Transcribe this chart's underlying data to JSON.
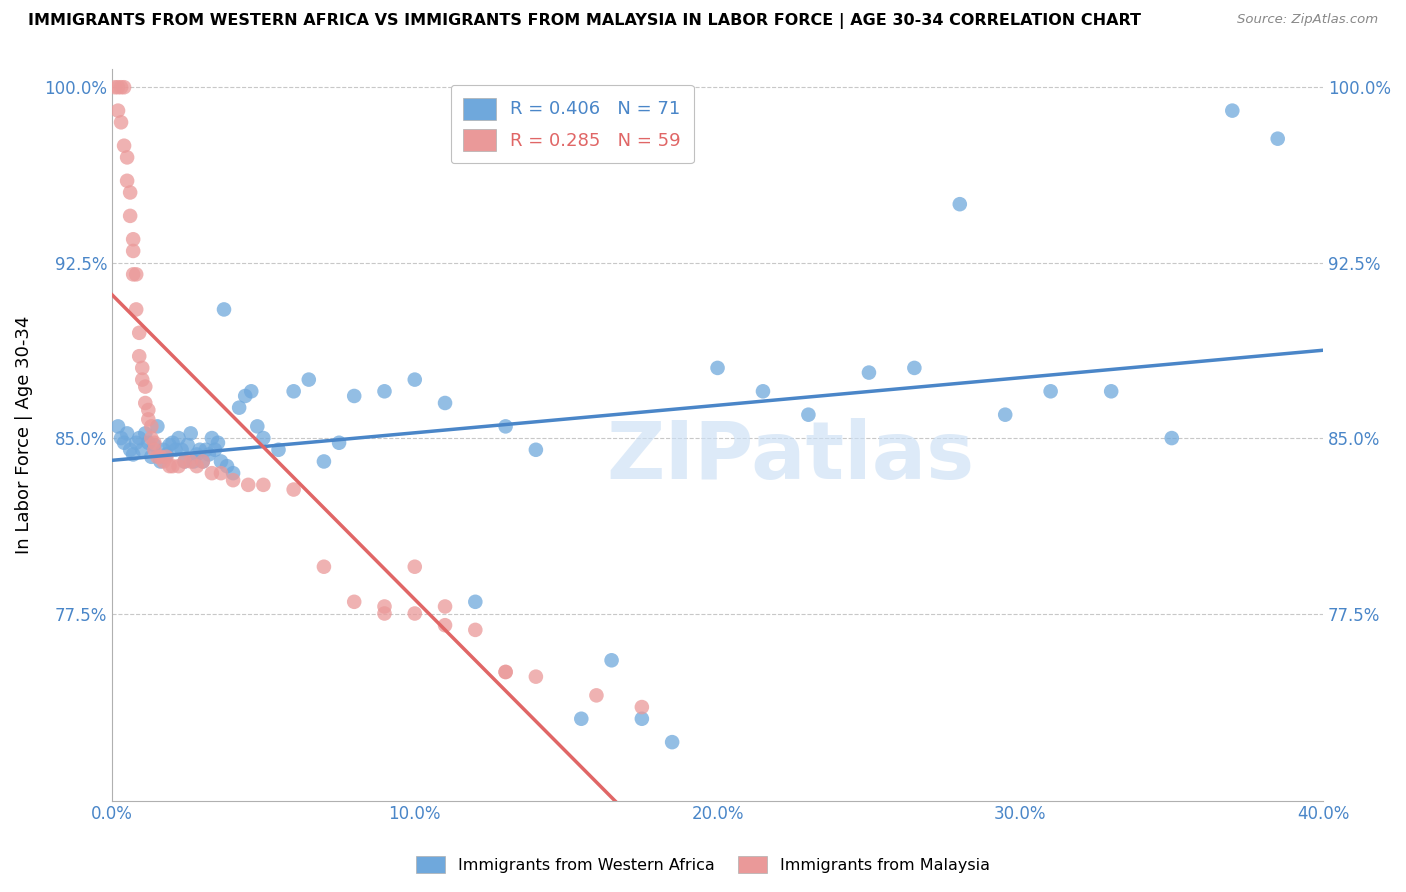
{
  "title": "IMMIGRANTS FROM WESTERN AFRICA VS IMMIGRANTS FROM MALAYSIA IN LABOR FORCE | AGE 30-34 CORRELATION CHART",
  "source": "Source: ZipAtlas.com",
  "ylabel": "In Labor Force | Age 30-34",
  "x_min": 0.0,
  "x_max": 0.4,
  "y_min": 0.695,
  "y_max": 1.008,
  "y_ticks": [
    0.775,
    0.85,
    0.925,
    1.0
  ],
  "y_tick_labels": [
    "77.5%",
    "85.0%",
    "92.5%",
    "100.0%"
  ],
  "x_ticks": [
    0.0,
    0.1,
    0.2,
    0.3,
    0.4
  ],
  "x_tick_labels": [
    "0.0%",
    "10.0%",
    "20.0%",
    "30.0%",
    "40.0%"
  ],
  "blue_color": "#6fa8dc",
  "pink_color": "#ea9999",
  "blue_line_color": "#4a86c8",
  "pink_line_color": "#e06666",
  "legend_blue_R": "R = 0.406",
  "legend_blue_N": "N = 71",
  "legend_pink_R": "R = 0.285",
  "legend_pink_N": "N = 59",
  "watermark": "ZIPatlas",
  "blue_x": [
    0.002,
    0.003,
    0.004,
    0.005,
    0.006,
    0.007,
    0.008,
    0.009,
    0.01,
    0.011,
    0.012,
    0.013,
    0.014,
    0.015,
    0.016,
    0.017,
    0.018,
    0.019,
    0.02,
    0.021,
    0.022,
    0.023,
    0.024,
    0.025,
    0.026,
    0.027,
    0.028,
    0.029,
    0.03,
    0.031,
    0.032,
    0.033,
    0.034,
    0.035,
    0.036,
    0.037,
    0.038,
    0.04,
    0.042,
    0.044,
    0.046,
    0.048,
    0.05,
    0.055,
    0.06,
    0.065,
    0.07,
    0.075,
    0.08,
    0.09,
    0.1,
    0.11,
    0.12,
    0.13,
    0.14,
    0.155,
    0.165,
    0.175,
    0.185,
    0.2,
    0.215,
    0.23,
    0.25,
    0.265,
    0.28,
    0.295,
    0.31,
    0.33,
    0.35,
    0.37,
    0.385
  ],
  "blue_y": [
    0.855,
    0.85,
    0.848,
    0.852,
    0.845,
    0.843,
    0.848,
    0.85,
    0.845,
    0.852,
    0.848,
    0.842,
    0.847,
    0.855,
    0.84,
    0.845,
    0.843,
    0.847,
    0.848,
    0.845,
    0.85,
    0.845,
    0.84,
    0.847,
    0.852,
    0.84,
    0.843,
    0.845,
    0.84,
    0.845,
    0.843,
    0.85,
    0.845,
    0.848,
    0.84,
    0.905,
    0.838,
    0.835,
    0.863,
    0.868,
    0.87,
    0.855,
    0.85,
    0.845,
    0.87,
    0.875,
    0.84,
    0.848,
    0.868,
    0.87,
    0.875,
    0.865,
    0.78,
    0.855,
    0.845,
    0.73,
    0.755,
    0.73,
    0.72,
    0.88,
    0.87,
    0.86,
    0.878,
    0.88,
    0.95,
    0.86,
    0.87,
    0.87,
    0.85,
    0.99,
    0.978
  ],
  "pink_x": [
    0.001,
    0.002,
    0.002,
    0.003,
    0.003,
    0.004,
    0.004,
    0.005,
    0.005,
    0.006,
    0.006,
    0.007,
    0.007,
    0.007,
    0.008,
    0.008,
    0.009,
    0.009,
    0.01,
    0.01,
    0.011,
    0.011,
    0.012,
    0.012,
    0.013,
    0.013,
    0.014,
    0.014,
    0.015,
    0.016,
    0.017,
    0.018,
    0.019,
    0.02,
    0.022,
    0.024,
    0.026,
    0.028,
    0.03,
    0.033,
    0.036,
    0.04,
    0.045,
    0.05,
    0.06,
    0.07,
    0.08,
    0.09,
    0.1,
    0.11,
    0.12,
    0.13,
    0.14,
    0.16,
    0.175,
    0.09,
    0.1,
    0.11,
    0.13
  ],
  "pink_y": [
    1.0,
    1.0,
    0.99,
    1.0,
    0.985,
    1.0,
    0.975,
    0.97,
    0.96,
    0.955,
    0.945,
    0.935,
    0.93,
    0.92,
    0.92,
    0.905,
    0.895,
    0.885,
    0.88,
    0.875,
    0.872,
    0.865,
    0.862,
    0.858,
    0.855,
    0.85,
    0.848,
    0.845,
    0.842,
    0.842,
    0.84,
    0.842,
    0.838,
    0.838,
    0.838,
    0.84,
    0.84,
    0.838,
    0.84,
    0.835,
    0.835,
    0.832,
    0.83,
    0.83,
    0.828,
    0.795,
    0.78,
    0.778,
    0.775,
    0.77,
    0.768,
    0.75,
    0.748,
    0.74,
    0.735,
    0.775,
    0.795,
    0.778,
    0.75
  ]
}
